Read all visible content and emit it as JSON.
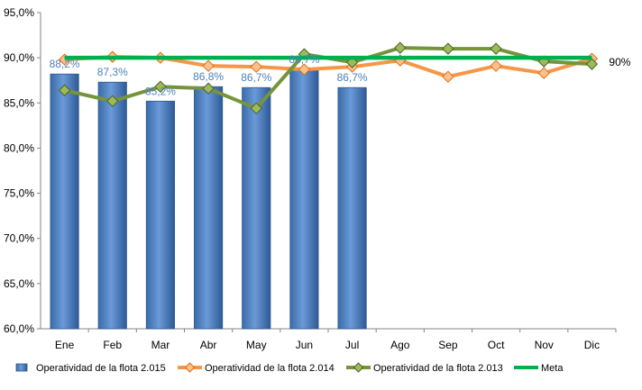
{
  "chart_data": {
    "type": "bar",
    "title": "",
    "xlabel": "",
    "ylabel": "",
    "categories": [
      "Ene",
      "Feb",
      "Mar",
      "Abr",
      "May",
      "Jun",
      "Jul",
      "Ago",
      "Sep",
      "Oct",
      "Nov",
      "Dic"
    ],
    "ylim": [
      60,
      95
    ],
    "yticks": [
      60,
      65,
      70,
      75,
      80,
      85,
      90,
      95
    ],
    "ytick_labels": [
      "60,0%",
      "65,0%",
      "70,0%",
      "75,0%",
      "80,0%",
      "85,0%",
      "90,0%",
      "95,0%"
    ],
    "grid": false,
    "legend_position": "bottom",
    "series": [
      {
        "name": "Operatividad de la flota 2.015",
        "type": "bar",
        "color": "#4a7ebb",
        "values": [
          88.2,
          87.3,
          85.2,
          86.8,
          86.7,
          88.7,
          86.7,
          null,
          null,
          null,
          null,
          null
        ],
        "data_labels": [
          "88,2%",
          "87,3%",
          "85,2%",
          "86,8%",
          "86,7%",
          "88,7%",
          "86,7%",
          "",
          "",
          "",
          "",
          ""
        ]
      },
      {
        "name": "Operatividad de la flota 2.014",
        "type": "line",
        "color": "#f79646",
        "marker": "diamond",
        "values": [
          89.8,
          90.1,
          90.0,
          89.1,
          89.0,
          88.7,
          89.0,
          89.7,
          87.9,
          89.1,
          88.3,
          89.9
        ]
      },
      {
        "name": "Operatividad de la flota 2.013",
        "type": "line",
        "color": "#77933c",
        "marker": "diamond",
        "values": [
          86.4,
          85.2,
          86.8,
          86.6,
          84.4,
          90.4,
          89.5,
          91.1,
          91.0,
          91.0,
          89.6,
          89.3
        ]
      },
      {
        "name": "Meta",
        "type": "line",
        "color": "#00b050",
        "values": [
          90,
          90,
          90,
          90,
          90,
          90,
          90,
          90,
          90,
          90,
          90,
          90
        ],
        "end_label": "90%"
      }
    ]
  }
}
